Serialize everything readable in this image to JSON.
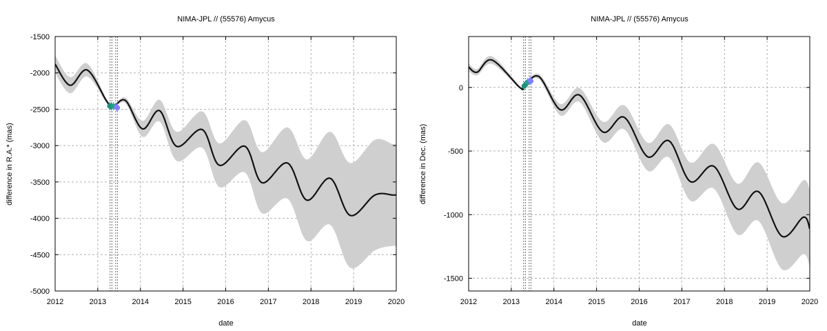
{
  "chart_data": [
    {
      "type": "line",
      "title": "NIMA-JPL // (55576) Amycus",
      "xlabel": "date",
      "ylabel": "difference in R.A.* (mas)",
      "xlim": [
        2012,
        2020
      ],
      "ylim": [
        -5000,
        -1500
      ],
      "xticks": [
        "2012",
        "2013",
        "2014",
        "2015",
        "2016",
        "2017",
        "2018",
        "2019",
        "2020"
      ],
      "yticks": [
        "-1500",
        "-2000",
        "-2500",
        "-3000",
        "-3500",
        "-4000",
        "-4500",
        "-5000"
      ],
      "grid": true,
      "series": [
        {
          "x": [
            2012.0,
            2012.35,
            2012.75,
            2013.2,
            2013.35,
            2013.65,
            2014.05,
            2014.45,
            2014.85,
            2015.45,
            2015.85,
            2016.45,
            2016.85,
            2017.45,
            2017.9,
            2018.45,
            2018.92,
            2019.5,
            2019.92,
            2020.0
          ],
          "values": [
            -1880,
            -2170,
            -1960,
            -2380,
            -2470,
            -2380,
            -2770,
            -2520,
            -3010,
            -2780,
            -3270,
            -3010,
            -3510,
            -3240,
            -3750,
            -3450,
            -3960,
            -3680,
            -3680,
            -3680
          ],
          "band_halfwidth": [
            120,
            110,
            90,
            30,
            20,
            40,
            110,
            150,
            200,
            250,
            300,
            360,
            420,
            490,
            560,
            640,
            720,
            760,
            700,
            720
          ]
        }
      ],
      "vlines": [
        2013.29,
        2013.33,
        2013.42,
        2013.46
      ],
      "points": [
        {
          "x": 2013.28,
          "y": -2455,
          "color": "#1f8f7a"
        },
        {
          "x": 2013.32,
          "y": -2460,
          "color": "#1f8f7a"
        },
        {
          "x": 2013.37,
          "y": -2458,
          "color": "#2a9d8f"
        },
        {
          "x": 2013.44,
          "y": -2470,
          "color": "#8080ff"
        },
        {
          "x": 2013.46,
          "y": -2480,
          "color": "#8080ff"
        }
      ]
    },
    {
      "type": "line",
      "title": "NIMA-JPL // (55576) Amycus",
      "xlabel": "date",
      "ylabel": "difference in Dec. (mas)",
      "xlim": [
        2012,
        2020
      ],
      "ylim": [
        -1600,
        400
      ],
      "xticks": [
        "2012",
        "2013",
        "2014",
        "2015",
        "2016",
        "2017",
        "2018",
        "2019",
        "2020"
      ],
      "yticks": [
        "0",
        "-500",
        "-1000",
        "-1500"
      ],
      "ytick_values": [
        0,
        -500,
        -1000,
        -1500
      ],
      "grid": true,
      "series": [
        {
          "x": [
            2012.0,
            2012.2,
            2012.55,
            2013.2,
            2013.3,
            2013.65,
            2014.15,
            2014.6,
            2015.15,
            2015.65,
            2016.2,
            2016.7,
            2017.2,
            2017.75,
            2018.3,
            2018.8,
            2019.35,
            2019.85,
            2020.0
          ],
          "values": [
            160,
            120,
            215,
            0,
            10,
            85,
            -175,
            -60,
            -350,
            -235,
            -545,
            -420,
            -740,
            -620,
            -955,
            -820,
            -1170,
            -1020,
            -1110
          ],
          "band_halfwidth": [
            30,
            25,
            30,
            10,
            10,
            20,
            45,
            55,
            80,
            95,
            110,
            130,
            150,
            175,
            200,
            230,
            260,
            290,
            300
          ]
        }
      ],
      "vlines": [
        2013.29,
        2013.33,
        2013.42,
        2013.46
      ],
      "points": [
        {
          "x": 2013.3,
          "y": 10,
          "color": "#1f8f7a"
        },
        {
          "x": 2013.34,
          "y": 25,
          "color": "#1f8f7a"
        },
        {
          "x": 2013.38,
          "y": 40,
          "color": "#2a9d8f"
        },
        {
          "x": 2013.44,
          "y": 55,
          "color": "#8080ff"
        },
        {
          "x": 2013.46,
          "y": 50,
          "color": "#8080ff"
        }
      ]
    }
  ]
}
